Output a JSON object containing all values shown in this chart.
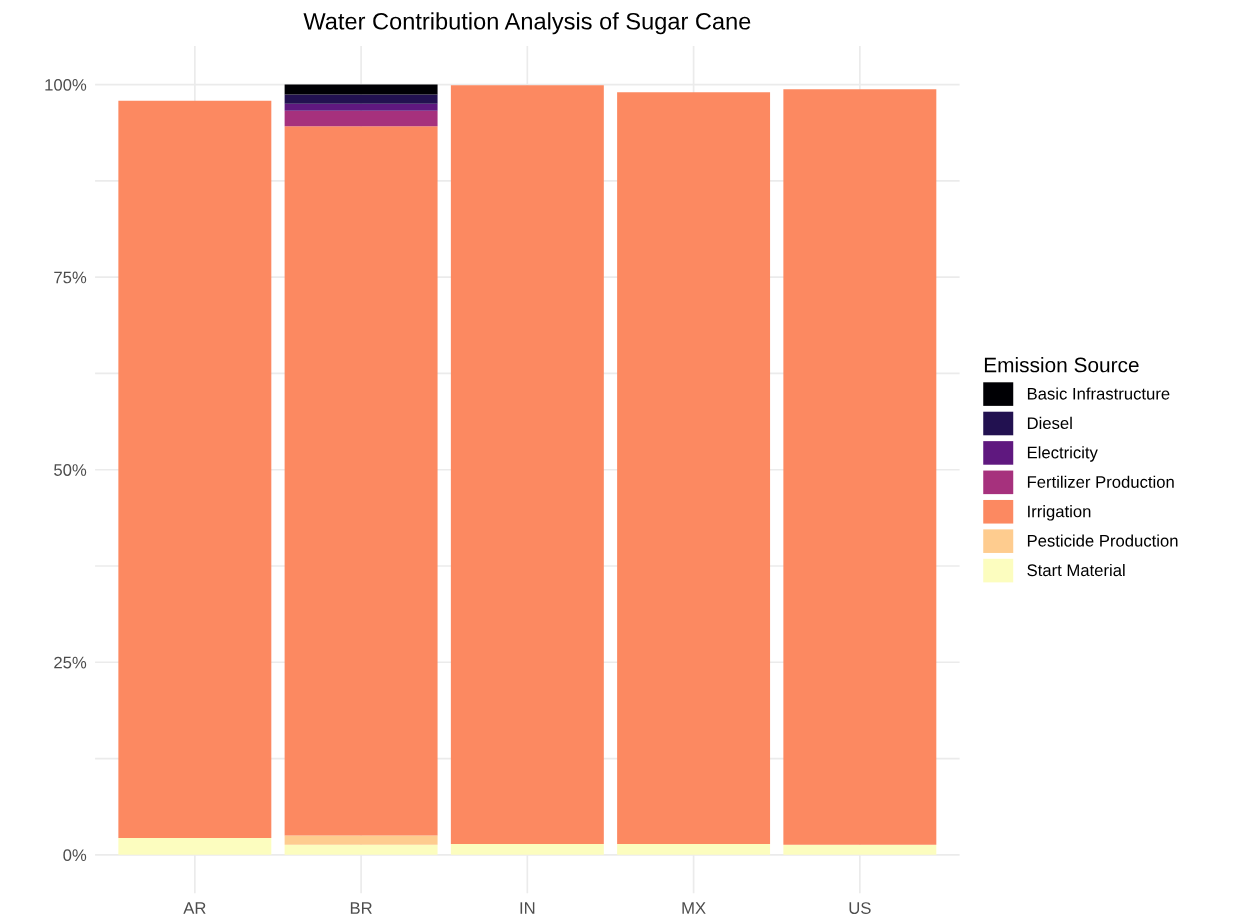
{
  "chart_data": {
    "type": "bar",
    "title": "Water Contribution Analysis of Sugar Cane",
    "legend_title": "Emission Source",
    "categories": [
      "AR",
      "BR",
      "IN",
      "MX",
      "US"
    ],
    "stacked": true,
    "legend": "right",
    "grid": true,
    "ylim": [
      -5,
      105
    ],
    "yticks": [
      {
        "value": 0,
        "label": "0%"
      },
      {
        "value": 12.5,
        "label": null
      },
      {
        "value": 25,
        "label": "25%"
      },
      {
        "value": 37.5,
        "label": null
      },
      {
        "value": 50,
        "label": "50%"
      },
      {
        "value": 62.5,
        "label": null
      },
      {
        "value": 75,
        "label": "75%"
      },
      {
        "value": 87.5,
        "label": null
      },
      {
        "value": 100,
        "label": "100%"
      }
    ],
    "series": [
      {
        "name": "Start Material",
        "color": "#fcfdbf",
        "values": [
          2.2,
          1.3,
          1.4,
          1.4,
          1.3
        ]
      },
      {
        "name": "Pesticide Production",
        "color": "#fecc8f",
        "values": [
          null,
          1.2,
          null,
          null,
          null
        ]
      },
      {
        "name": "Irrigation",
        "color": "#fc8961",
        "values": [
          95.7,
          92.1,
          98.5,
          97.6,
          98.1
        ]
      },
      {
        "name": "Fertilizer Production",
        "color": "#a6317d",
        "values": [
          null,
          2.0,
          null,
          null,
          null
        ]
      },
      {
        "name": "Electricity",
        "color": "#5f187f",
        "values": [
          null,
          0.9,
          null,
          null,
          null
        ]
      },
      {
        "name": "Diesel",
        "color": "#221150",
        "values": [
          null,
          1.2,
          null,
          null,
          null
        ]
      },
      {
        "name": "Basic Infrastructure",
        "color": "#000004",
        "values": [
          null,
          1.3,
          null,
          null,
          null
        ]
      }
    ]
  }
}
